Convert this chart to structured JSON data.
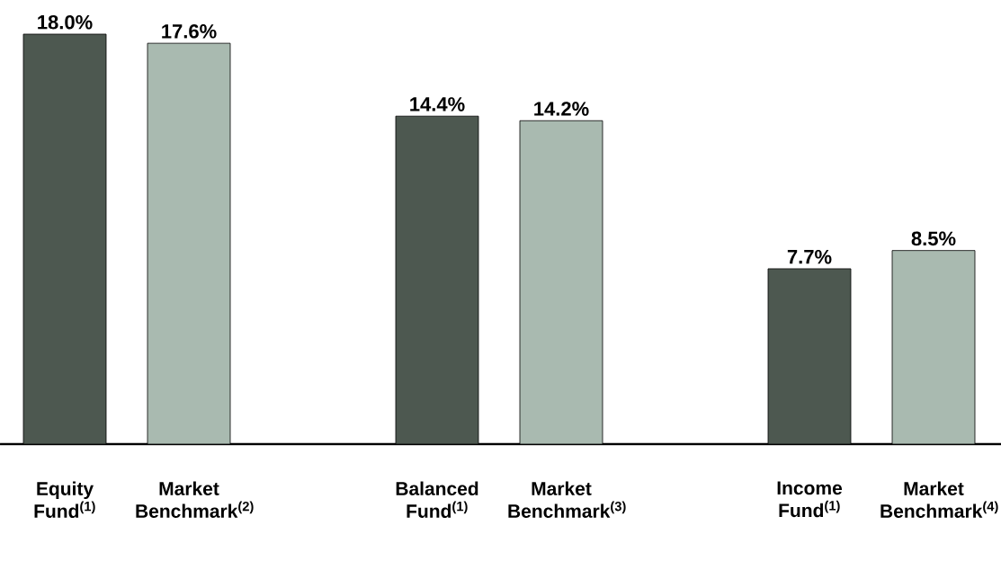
{
  "chart_data": {
    "type": "bar",
    "categories": [
      "Equity Fund$^{(1)}$",
      "Market Benchmark$^{(2)}$",
      null,
      "Balanced Fund$^{(1)}$",
      "Market Benchmark$^{(3)}$",
      null,
      "Income Fund$^{(1)}$",
      "Market Benchmark$^{(4)}$"
    ],
    "values": [
      18.0,
      17.6,
      null,
      14.4,
      14.2,
      null,
      7.7,
      8.5
    ],
    "colors": [
      "#4d5850",
      "#a9bab0",
      null,
      "#4d5850",
      "#a9bab0",
      null,
      "#4d5850",
      "#a9bab0"
    ],
    "value_labels": [
      "18.0%",
      "17.6%",
      null,
      "14.4%",
      "14.2%",
      null,
      "7.7%",
      "8.5%"
    ]
  }
}
